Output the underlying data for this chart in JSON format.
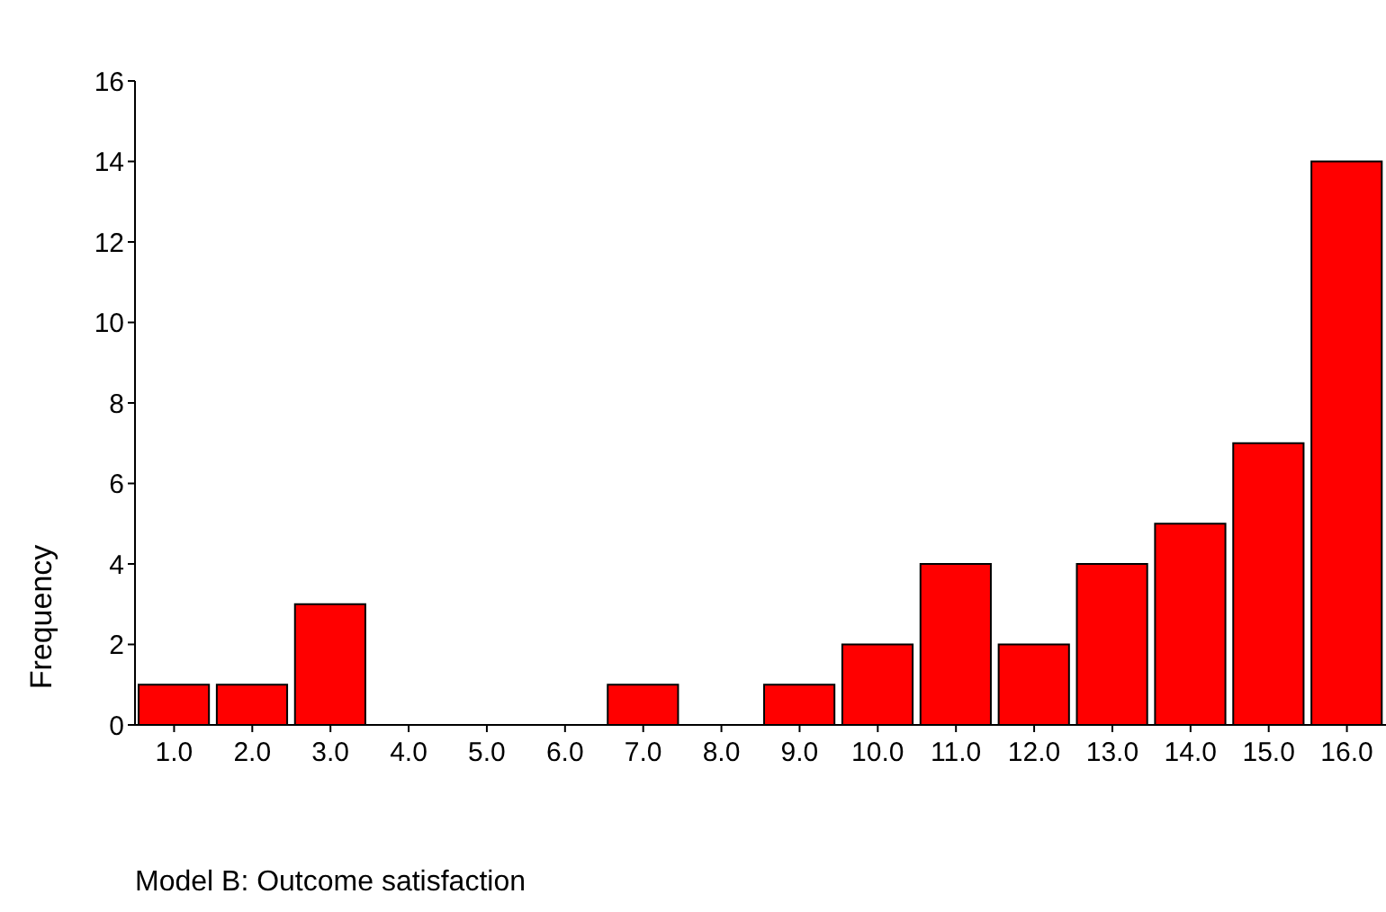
{
  "chart_data": {
    "type": "histogram",
    "xlabel": "Model B: Outcome satisfaction",
    "ylabel": "Frequency",
    "bins": [
      0.5,
      1.5,
      2.5,
      3.5,
      4.5,
      5.5,
      6.5,
      7.5,
      8.5,
      9.5,
      10.5,
      11.5,
      12.5,
      13.5,
      14.5,
      15.5,
      16.5
    ],
    "values": [
      1,
      1,
      3,
      0,
      0,
      0,
      1,
      0,
      1,
      2,
      4,
      2,
      4,
      5,
      7,
      14
    ],
    "color": "#ff0000",
    "xlim": [
      0.5,
      16.5
    ],
    "xticks": [
      {
        "value": 1,
        "label": "1.0"
      },
      {
        "value": 2,
        "label": "2.0"
      },
      {
        "value": 3,
        "label": "3.0"
      },
      {
        "value": 4,
        "label": "4.0"
      },
      {
        "value": 5,
        "label": "5.0"
      },
      {
        "value": 6,
        "label": "6.0"
      },
      {
        "value": 7,
        "label": "7.0"
      },
      {
        "value": 8,
        "label": "8.0"
      },
      {
        "value": 9,
        "label": "9.0"
      },
      {
        "value": 10,
        "label": "10.0"
      },
      {
        "value": 11,
        "label": "11.0"
      },
      {
        "value": 12,
        "label": "12.0"
      },
      {
        "value": 13,
        "label": "13.0"
      },
      {
        "value": 14,
        "label": "14.0"
      },
      {
        "value": 15,
        "label": "15.0"
      },
      {
        "value": 16,
        "label": "16.0"
      }
    ],
    "ylim": [
      0,
      16
    ],
    "yticks": [
      0,
      2,
      4,
      6,
      8,
      10,
      12,
      14,
      16
    ],
    "grid": false,
    "legend": false
  }
}
